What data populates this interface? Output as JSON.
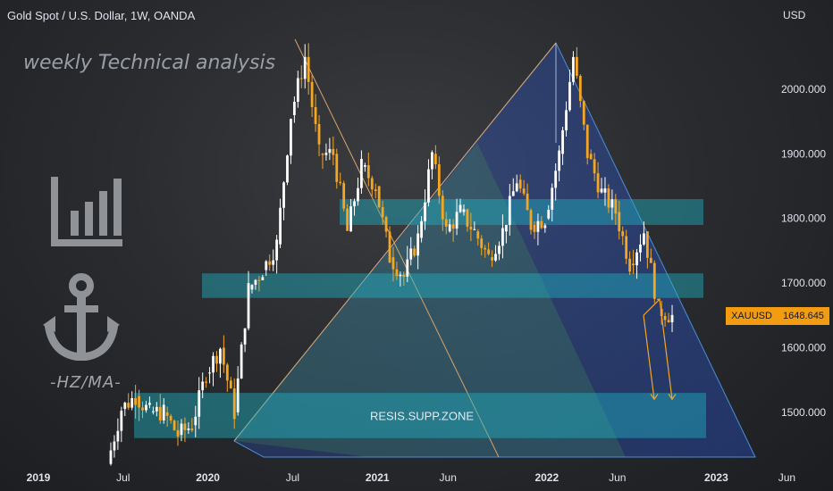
{
  "header": {
    "title": "Gold Spot / U.S. Dollar, 1W, OANDA"
  },
  "branding": {
    "tagline": "weekly Technical analysis",
    "logo_icon": "bar-chart-icon",
    "anchor_icon": "anchor-icon",
    "caption": "-HZ/MA-"
  },
  "price_axis": {
    "unit": "USD"
  },
  "last_price": {
    "symbol": "XAUUSD",
    "value": "1648.645"
  },
  "colors": {
    "up": "#ffffff",
    "down": "#f5a623",
    "zone": "#1fb2c4",
    "arrow": "#f5a623",
    "channel_blue": "#2962ff",
    "channel_green": "#4caf50"
  },
  "chart_data": {
    "type": "candlestick",
    "title": "Gold Spot / U.S. Dollar, 1W, OANDA",
    "ylabel": "USD",
    "ylim": [
      1440,
      2100
    ],
    "y_ticks": [
      "2000.000",
      "1900.000",
      "1800.000",
      "1700.000",
      "1600.000",
      "1500.000"
    ],
    "y_tick_values": [
      2000,
      1900,
      1800,
      1700,
      1600,
      1500
    ],
    "x_ticks": [
      "2019",
      "Jul",
      "2020",
      "Jul",
      "2021",
      "Jun",
      "2022",
      "Jun",
      "2023",
      "Jun"
    ],
    "x_tick_dates": [
      "2019-01",
      "2019-07",
      "2020-01",
      "2020-07",
      "2021-01",
      "2021-06",
      "2022-01",
      "2022-06",
      "2023-01",
      "2023-06"
    ],
    "price_path": [
      [
        "2019-06",
        1420
      ],
      [
        "2019-07",
        1505
      ],
      [
        "2019-08",
        1525
      ],
      [
        "2019-09",
        1500
      ],
      [
        "2019-10",
        1500
      ],
      [
        "2019-11",
        1465
      ],
      [
        "2019-12",
        1480
      ],
      [
        "2020-01",
        1560
      ],
      [
        "2020-02",
        1600
      ],
      [
        "2020-03",
        1500
      ],
      [
        "2020-04",
        1690
      ],
      [
        "2020-05",
        1720
      ],
      [
        "2020-06",
        1760
      ],
      [
        "2020-07",
        1960
      ],
      [
        "2020-08",
        2050
      ],
      [
        "2020-09",
        1900
      ],
      [
        "2020-10",
        1900
      ],
      [
        "2020-11",
        1780
      ],
      [
        "2020-12",
        1880
      ],
      [
        "2021-01",
        1850
      ],
      [
        "2021-02",
        1740
      ],
      [
        "2021-03",
        1710
      ],
      [
        "2021-04",
        1770
      ],
      [
        "2021-05",
        1900
      ],
      [
        "2021-06",
        1780
      ],
      [
        "2021-07",
        1810
      ],
      [
        "2021-08",
        1780
      ],
      [
        "2021-09",
        1740
      ],
      [
        "2021-10",
        1780
      ],
      [
        "2021-11",
        1860
      ],
      [
        "2021-12",
        1790
      ],
      [
        "2022-01",
        1800
      ],
      [
        "2022-02",
        1900
      ],
      [
        "2022-03",
        2050
      ],
      [
        "2022-04",
        1900
      ],
      [
        "2022-05",
        1840
      ],
      [
        "2022-06",
        1810
      ],
      [
        "2022-07",
        1730
      ],
      [
        "2022-08",
        1780
      ],
      [
        "2022-09",
        1660
      ],
      [
        "2022-10",
        1648.645
      ]
    ],
    "zones": [
      {
        "label": "",
        "from": 1790,
        "to": 1830
      },
      {
        "label": "",
        "from": 1677,
        "to": 1715
      },
      {
        "label": "RESIS.SUPP.ZONE",
        "from": 1460,
        "to": 1530
      }
    ],
    "legend": "none",
    "grid": false
  }
}
